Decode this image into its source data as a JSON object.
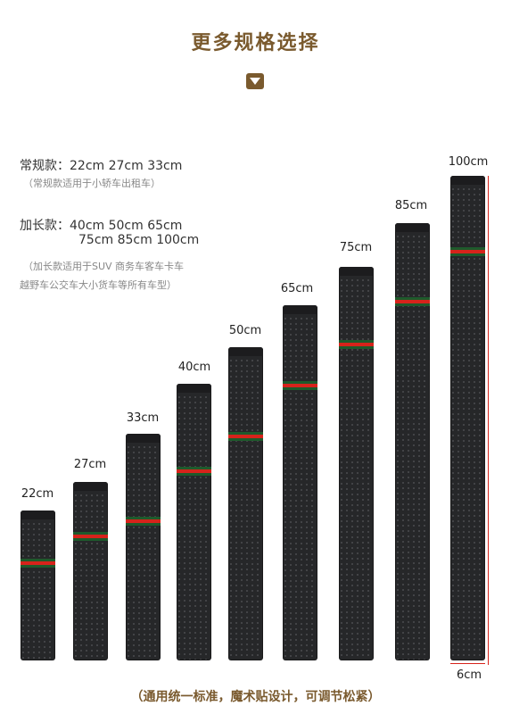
{
  "header": {
    "title": "更多规格选择"
  },
  "specs": {
    "regular_line": "常规款：22cm 27cm 33cm",
    "regular_note": "（常规款适用于小轿车出租车）",
    "long_line1": "加长款：40cm 50cm 65cm",
    "long_line2": "75cm 85cm 100cm",
    "long_note1": "（加长款适用于SUV 商务车客车卡车",
    "long_note2": "越野车公交车大小货车等所有车型）"
  },
  "pads": [
    {
      "label": "22cm"
    },
    {
      "label": "27cm"
    },
    {
      "label": "33cm"
    },
    {
      "label": "40cm"
    },
    {
      "label": "50cm"
    },
    {
      "label": "65cm"
    },
    {
      "label": "75cm"
    },
    {
      "label": "85cm"
    },
    {
      "label": "100cm"
    }
  ],
  "width_label": "6cm",
  "footer": {
    "text": "（通用统一标准，魔术贴设计，可调节松紧）"
  },
  "colors": {
    "accent_brown": "#7a5a2e",
    "stripe_red": "#d6231b",
    "stripe_green": "#1e5a2c",
    "pad_black": "#262729"
  }
}
